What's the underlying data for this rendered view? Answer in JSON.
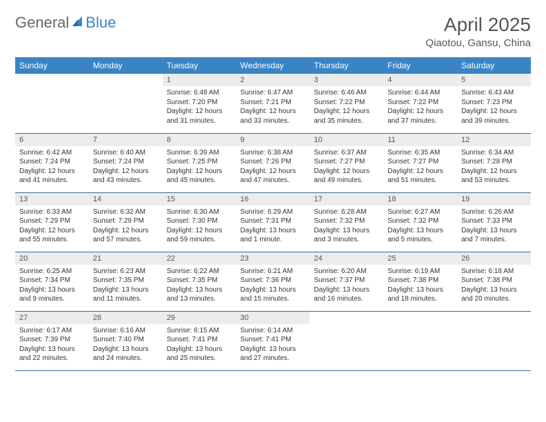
{
  "brand": {
    "part1": "General",
    "part2": "Blue"
  },
  "title": "April 2025",
  "location": "Qiaotou, Gansu, China",
  "colors": {
    "header_bg": "#3b84c4",
    "header_text": "#ffffff",
    "daynum_bg": "#ececec",
    "rule": "#3b6a9a",
    "logo_gray": "#666666",
    "logo_blue": "#3b84c4"
  },
  "font": {
    "family": "Arial",
    "title_size": 28,
    "location_size": 15,
    "header_size": 12,
    "daynum_size": 11,
    "body_size": 10
  },
  "day_names": [
    "Sunday",
    "Monday",
    "Tuesday",
    "Wednesday",
    "Thursday",
    "Friday",
    "Saturday"
  ],
  "weeks": [
    [
      null,
      null,
      {
        "n": "1",
        "sr": "6:48 AM",
        "ss": "7:20 PM",
        "dl": "12 hours and 31 minutes."
      },
      {
        "n": "2",
        "sr": "6:47 AM",
        "ss": "7:21 PM",
        "dl": "12 hours and 33 minutes."
      },
      {
        "n": "3",
        "sr": "6:46 AM",
        "ss": "7:22 PM",
        "dl": "12 hours and 35 minutes."
      },
      {
        "n": "4",
        "sr": "6:44 AM",
        "ss": "7:22 PM",
        "dl": "12 hours and 37 minutes."
      },
      {
        "n": "5",
        "sr": "6:43 AM",
        "ss": "7:23 PM",
        "dl": "12 hours and 39 minutes."
      }
    ],
    [
      {
        "n": "6",
        "sr": "6:42 AM",
        "ss": "7:24 PM",
        "dl": "12 hours and 41 minutes."
      },
      {
        "n": "7",
        "sr": "6:40 AM",
        "ss": "7:24 PM",
        "dl": "12 hours and 43 minutes."
      },
      {
        "n": "8",
        "sr": "6:39 AM",
        "ss": "7:25 PM",
        "dl": "12 hours and 45 minutes."
      },
      {
        "n": "9",
        "sr": "6:38 AM",
        "ss": "7:26 PM",
        "dl": "12 hours and 47 minutes."
      },
      {
        "n": "10",
        "sr": "6:37 AM",
        "ss": "7:27 PM",
        "dl": "12 hours and 49 minutes."
      },
      {
        "n": "11",
        "sr": "6:35 AM",
        "ss": "7:27 PM",
        "dl": "12 hours and 51 minutes."
      },
      {
        "n": "12",
        "sr": "6:34 AM",
        "ss": "7:28 PM",
        "dl": "12 hours and 53 minutes."
      }
    ],
    [
      {
        "n": "13",
        "sr": "6:33 AM",
        "ss": "7:29 PM",
        "dl": "12 hours and 55 minutes."
      },
      {
        "n": "14",
        "sr": "6:32 AM",
        "ss": "7:29 PM",
        "dl": "12 hours and 57 minutes."
      },
      {
        "n": "15",
        "sr": "6:30 AM",
        "ss": "7:30 PM",
        "dl": "12 hours and 59 minutes."
      },
      {
        "n": "16",
        "sr": "6:29 AM",
        "ss": "7:31 PM",
        "dl": "13 hours and 1 minute."
      },
      {
        "n": "17",
        "sr": "6:28 AM",
        "ss": "7:32 PM",
        "dl": "13 hours and 3 minutes."
      },
      {
        "n": "18",
        "sr": "6:27 AM",
        "ss": "7:32 PM",
        "dl": "13 hours and 5 minutes."
      },
      {
        "n": "19",
        "sr": "6:26 AM",
        "ss": "7:33 PM",
        "dl": "13 hours and 7 minutes."
      }
    ],
    [
      {
        "n": "20",
        "sr": "6:25 AM",
        "ss": "7:34 PM",
        "dl": "13 hours and 9 minutes."
      },
      {
        "n": "21",
        "sr": "6:23 AM",
        "ss": "7:35 PM",
        "dl": "13 hours and 11 minutes."
      },
      {
        "n": "22",
        "sr": "6:22 AM",
        "ss": "7:35 PM",
        "dl": "13 hours and 13 minutes."
      },
      {
        "n": "23",
        "sr": "6:21 AM",
        "ss": "7:36 PM",
        "dl": "13 hours and 15 minutes."
      },
      {
        "n": "24",
        "sr": "6:20 AM",
        "ss": "7:37 PM",
        "dl": "13 hours and 16 minutes."
      },
      {
        "n": "25",
        "sr": "6:19 AM",
        "ss": "7:38 PM",
        "dl": "13 hours and 18 minutes."
      },
      {
        "n": "26",
        "sr": "6:18 AM",
        "ss": "7:38 PM",
        "dl": "13 hours and 20 minutes."
      }
    ],
    [
      {
        "n": "27",
        "sr": "6:17 AM",
        "ss": "7:39 PM",
        "dl": "13 hours and 22 minutes."
      },
      {
        "n": "28",
        "sr": "6:16 AM",
        "ss": "7:40 PM",
        "dl": "13 hours and 24 minutes."
      },
      {
        "n": "29",
        "sr": "6:15 AM",
        "ss": "7:41 PM",
        "dl": "13 hours and 25 minutes."
      },
      {
        "n": "30",
        "sr": "6:14 AM",
        "ss": "7:41 PM",
        "dl": "13 hours and 27 minutes."
      },
      null,
      null,
      null
    ]
  ],
  "labels": {
    "sunrise": "Sunrise:",
    "sunset": "Sunset:",
    "daylight": "Daylight:"
  }
}
